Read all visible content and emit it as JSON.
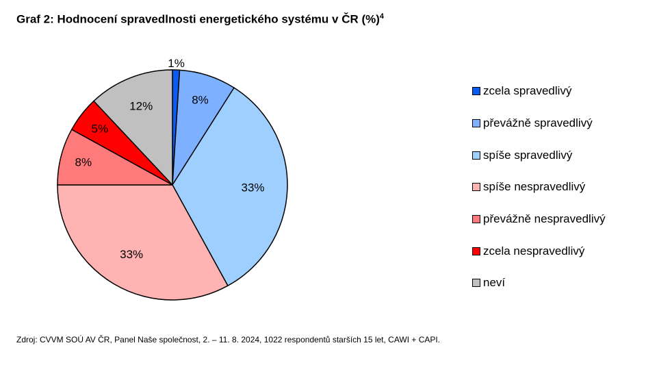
{
  "title": {
    "text": "Graf 2: Hodnocení spravedlnosti energetického systému v ČR (%)",
    "footnote": "4"
  },
  "chart_data": {
    "type": "pie",
    "title": "Graf 2: Hodnocení spravedlnosti energetického systému v ČR (%)",
    "unit": "%",
    "slices": [
      {
        "label": "zcela spravedlivý",
        "value": 1,
        "display": "1%",
        "color": "#0a5cf0"
      },
      {
        "label": "převážně spravedlivý",
        "value": 8,
        "display": "8%",
        "color": "#7db1ff"
      },
      {
        "label": "spíše spravedlivý",
        "value": 33,
        "display": "33%",
        "color": "#9fcfff"
      },
      {
        "label": "spíše nespravedlivý",
        "value": 33,
        "display": "33%",
        "color": "#ffb3b3"
      },
      {
        "label": "převážně nespravedlivý",
        "value": 8,
        "display": "8%",
        "color": "#ff7a7a"
      },
      {
        "label": "zcela nespravedlivý",
        "value": 5,
        "display": "5%",
        "color": "#ff0000"
      },
      {
        "label": "neví",
        "value": 12,
        "display": "12%",
        "color": "#c0c0c0"
      }
    ],
    "legend_position": "right"
  },
  "source": "Zdroj: CVVM SOÚ AV ČR, Panel Naše společnost, 2. – 11. 8. 2024, 1022 respondentů starších 15 let, CAWI + CAPI."
}
